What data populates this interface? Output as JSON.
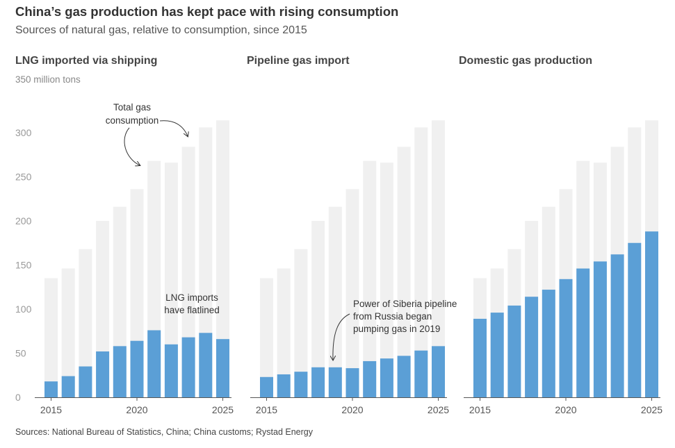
{
  "title": "China’s gas production has kept pace with rising consumption",
  "subtitle": "Sources of natural gas, relative to consumption, since 2015",
  "source": "Sources: National Bureau of Statistics, China; China customs; Rystad Energy",
  "colors": {
    "consumption": "#f0f0f0",
    "source": "#5b9fd6",
    "axis": "#555555"
  },
  "chart_data": {
    "type": "bar",
    "unit_label": "350 million tons",
    "ylim": [
      0,
      350
    ],
    "yticks": [
      0,
      50,
      100,
      150,
      200,
      250,
      300
    ],
    "years": [
      2015,
      2016,
      2017,
      2018,
      2019,
      2020,
      2021,
      2022,
      2023,
      2024,
      2025
    ],
    "xtick_labels": [
      "2015",
      "2020",
      "2025"
    ],
    "consumption": {
      "name": "Total gas consumption",
      "values": [
        135,
        146,
        168,
        200,
        216,
        236,
        268,
        266,
        284,
        306,
        314
      ]
    },
    "panels": [
      {
        "title": "LNG imported via shipping",
        "values": [
          18,
          24,
          35,
          52,
          58,
          64,
          76,
          60,
          68,
          73,
          66
        ],
        "annotation": {
          "lines": [
            "LNG imports",
            "have flatlined"
          ]
        }
      },
      {
        "title": "Pipeline gas import",
        "values": [
          23,
          26,
          29,
          34,
          34,
          33,
          41,
          44,
          47,
          53,
          58
        ],
        "annotation": {
          "lines": [
            "Power of Siberia pipeline",
            "from Russia began",
            "pumping gas in 2019"
          ]
        }
      },
      {
        "title": "Domestic gas production",
        "values": [
          89,
          96,
          104,
          114,
          122,
          134,
          146,
          154,
          162,
          175,
          188
        ]
      }
    ],
    "consumption_annotation": {
      "lines": [
        "Total gas",
        "consumption"
      ]
    }
  }
}
